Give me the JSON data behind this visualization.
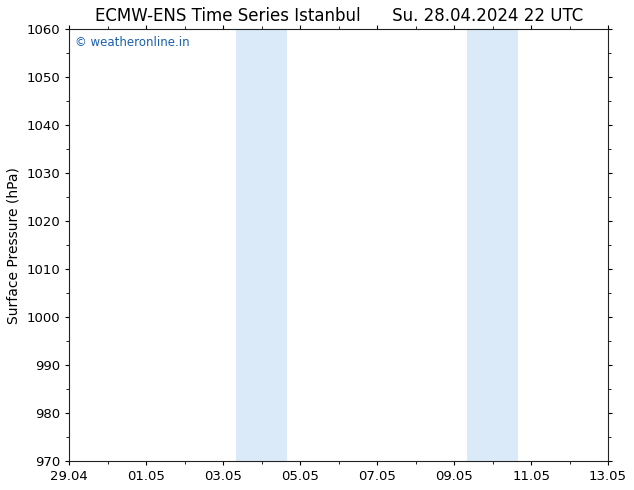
{
  "title_left": "ECMW-ENS Time Series Istanbul",
  "title_right": "Su. 28.04.2024 22 UTC",
  "ylabel": "Surface Pressure (hPa)",
  "ylim": [
    970,
    1060
  ],
  "yticks": [
    970,
    980,
    990,
    1000,
    1010,
    1020,
    1030,
    1040,
    1050,
    1060
  ],
  "xlim_start": 0,
  "xlim_end": 14,
  "xtick_labels": [
    "29.04",
    "01.05",
    "03.05",
    "05.05",
    "07.05",
    "09.05",
    "11.05",
    "13.05"
  ],
  "xtick_positions": [
    0,
    2,
    4,
    6,
    8,
    10,
    12,
    14
  ],
  "shaded_bands": [
    {
      "x_start": 4.33,
      "x_end": 5.0
    },
    {
      "x_start": 5.0,
      "x_end": 5.67
    },
    {
      "x_start": 10.33,
      "x_end": 11.0
    },
    {
      "x_start": 11.0,
      "x_end": 11.67
    }
  ],
  "shaded_color": "#daeaf8",
  "watermark_text": "© weatheronline.in",
  "watermark_color": "#1a5fac",
  "background_color": "#ffffff",
  "axes_bg_color": "#ffffff",
  "spine_color": "#222222",
  "title_fontsize": 12,
  "label_fontsize": 10,
  "tick_fontsize": 9.5
}
